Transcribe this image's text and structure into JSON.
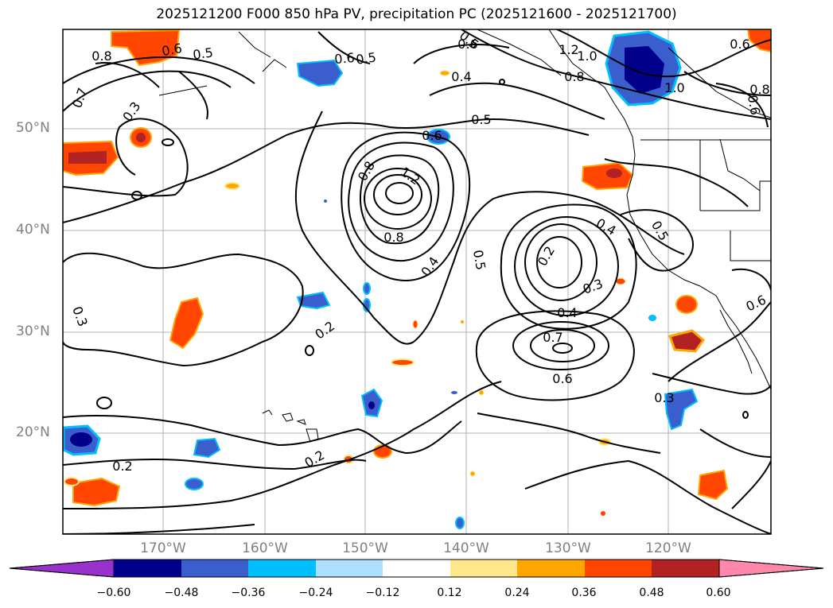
{
  "title": "2025121200 F000 850 hPa PV, precipitation PC (2025121600 - 2025121700)",
  "lat_labels": [
    "50°N",
    "40°N",
    "30°N",
    "20°N"
  ],
  "lon_labels": [
    "170°W",
    "160°W",
    "150°W",
    "140°W",
    "130°W",
    "120°W"
  ],
  "colorbar": {
    "ticks": [
      "−0.60",
      "−0.48",
      "−0.36",
      "−0.24",
      "−0.12",
      "0.12",
      "0.24",
      "0.36",
      "0.48",
      "0.60"
    ],
    "colors": [
      "#9932CC",
      "#00008B",
      "#3A5FCD",
      "#00BFFF",
      "#ADDFFF",
      "#FFFFFF",
      "#FFE88A",
      "#FFA500",
      "#FF4500",
      "#B22222",
      "#FF88AA"
    ]
  },
  "contour_labels": [
    "0.8",
    "0.6",
    "0.5",
    "0.7",
    "0.3",
    "0.6",
    "0.5",
    "0.5",
    "0.6",
    "1.2",
    "1.0",
    "0.8",
    "0.6",
    "0.4",
    "0.5",
    "0.6",
    "1.2",
    "0.8",
    "0.8",
    "0.4",
    "0.5",
    "0.2",
    "0.3",
    "0.4",
    "0.7",
    "0.6",
    "0.2",
    "0.3",
    "0.2",
    "0.2",
    "0.3",
    "0.6",
    "0.4",
    "0.5",
    "0.6",
    "0.8",
    "1.0"
  ]
}
